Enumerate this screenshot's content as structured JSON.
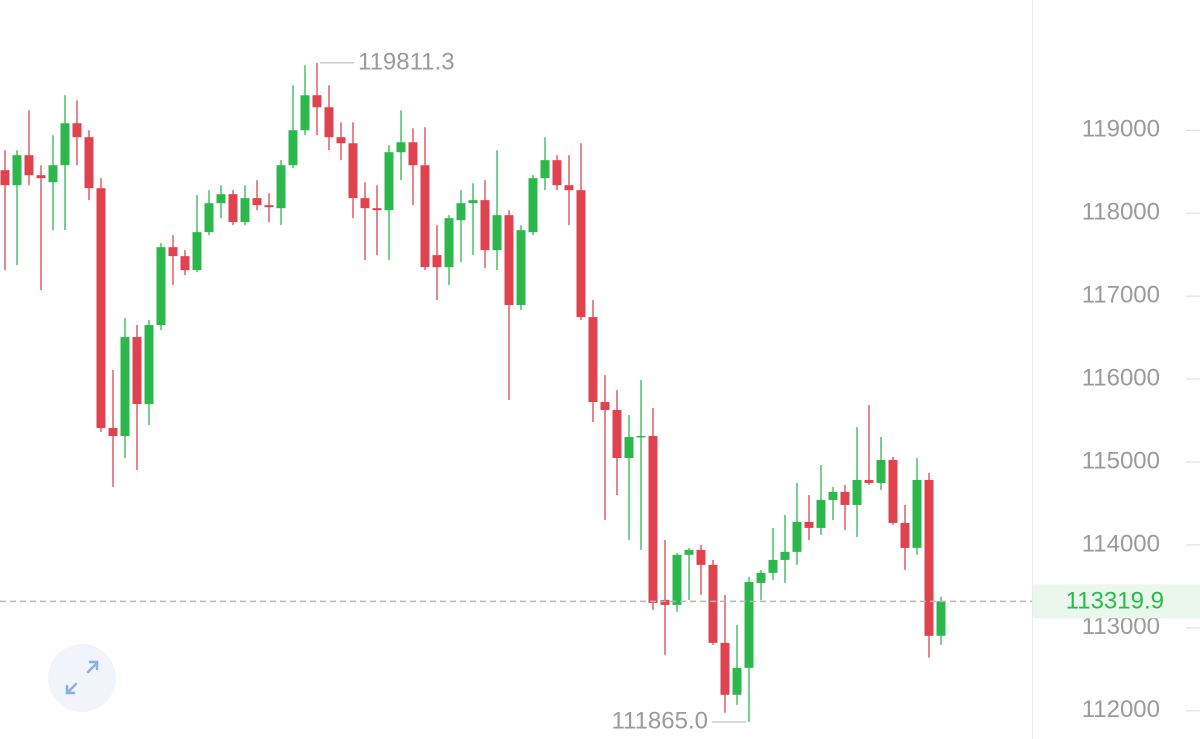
{
  "chart_data": {
    "type": "candlestick",
    "up_color": "#2db84d",
    "down_color": "#e0434f",
    "ylim": [
      111660,
      120570
    ],
    "yticks": [
      112000,
      113000,
      114000,
      115000,
      116000,
      117000,
      118000,
      119000
    ],
    "open": [
      118518,
      118337,
      118699,
      118458,
      118373,
      118578,
      119084,
      118916,
      118301,
      115410,
      115313,
      116506,
      115699,
      116651,
      117590,
      117482,
      117313,
      117771,
      118120,
      118229,
      117892,
      118181,
      118096,
      118060,
      118578,
      119000,
      119422,
      119277,
      118916,
      118843,
      118181,
      118060,
      118036,
      118735,
      118855,
      118578,
      117494,
      117349,
      117916,
      118120,
      118157,
      117554,
      117976,
      116892,
      117771,
      118422,
      118639,
      118337,
      118277,
      116747,
      115723,
      115627,
      115048,
      115301,
      115313,
      113337,
      113277,
      113880,
      113940,
      113759,
      112819,
      112193,
      112518,
      113542,
      113663,
      113819,
      113916,
      114277,
      114205,
      114542,
      114639,
      114482,
      114783,
      114747,
      115024,
      114265,
      113964,
      114783,
      112904
    ],
    "high": [
      118759,
      118759,
      119241,
      118578,
      118940,
      119422,
      119361,
      119000,
      118422,
      116108,
      116735,
      116651,
      116711,
      117639,
      117735,
      117554,
      118217,
      118277,
      118337,
      118277,
      118337,
      118398,
      118241,
      118639,
      119542,
      119783,
      119811.3,
      119542,
      119096,
      119096,
      118373,
      118337,
      118819,
      119241,
      119024,
      119036,
      117855,
      117976,
      118277,
      118361,
      118398,
      118759,
      118036,
      117855,
      118458,
      118916,
      118699,
      118699,
      118843,
      116952,
      116048,
      115867,
      115566,
      115988,
      115651,
      114060,
      113904,
      113964,
      114000,
      113819,
      113398,
      113036,
      113614,
      113699,
      114205,
      114361,
      114747,
      114602,
      114964,
      114699,
      114723,
      115422,
      115687,
      115301,
      115060,
      114482,
      115048,
      114867,
      113373
    ],
    "low": [
      117313,
      117374,
      118337,
      117072,
      117795,
      117795,
      118578,
      118157,
      115361,
      114699,
      115048,
      114904,
      115446,
      116590,
      117133,
      117253,
      117289,
      117735,
      117940,
      117855,
      117855,
      118036,
      117892,
      117855,
      118542,
      118940,
      118940,
      118759,
      118639,
      117940,
      117434,
      117494,
      117434,
      118398,
      118096,
      117313,
      116952,
      117133,
      117410,
      117494,
      117337,
      117313,
      115747,
      116831,
      117735,
      118277,
      118277,
      117855,
      116711,
      115482,
      114301,
      114602,
      114060,
      113940,
      113217,
      112675,
      113193,
      113337,
      113398,
      112795,
      111976,
      112072,
      111865,
      113337,
      113578,
      113542,
      113759,
      114060,
      114121,
      114301,
      114181,
      114096,
      114723,
      114663,
      114241,
      113699,
      113880,
      112639,
      112795
    ],
    "close": [
      118337,
      118699,
      118458,
      118422,
      118578,
      119084,
      118916,
      118301,
      115410,
      115313,
      116506,
      115699,
      116651,
      117590,
      117482,
      117313,
      117771,
      118120,
      118229,
      117892,
      118181,
      118096,
      118072,
      118578,
      119000,
      119422,
      119277,
      118916,
      118843,
      118181,
      118060,
      118036,
      118735,
      118855,
      118578,
      117349,
      117349,
      117940,
      118120,
      118157,
      117554,
      117976,
      116892,
      117795,
      118422,
      118639,
      118337,
      118277,
      116747,
      115723,
      115627,
      115048,
      115301,
      115313,
      113301,
      113277,
      113880,
      113940,
      113759,
      112819,
      112193,
      112518,
      113554,
      113663,
      113819,
      113916,
      114277,
      114205,
      114542,
      114639,
      114482,
      114783,
      114747,
      115024,
      114265,
      113964,
      114783,
      112904,
      113319.9
    ],
    "high_label": 119811.3,
    "low_label": {
      "value": 111865,
      "label": "111865.0"
    },
    "last_price": 113319.9
  }
}
